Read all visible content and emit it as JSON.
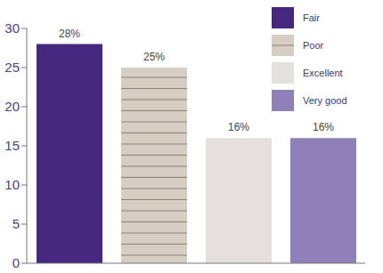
{
  "chart_data": {
    "type": "bar",
    "categories": [
      "Fair",
      "Poor",
      "Excellent",
      "Very good"
    ],
    "values": [
      28,
      25,
      16,
      16
    ],
    "value_labels": [
      "28%",
      "25%",
      "16%",
      "16%"
    ],
    "colors": [
      "#46287f",
      "#d6cdc3",
      "#e4e0db",
      "#8f80b9"
    ],
    "ylim": [
      0,
      30
    ],
    "yticks": [
      0,
      5,
      10,
      15,
      20,
      25,
      30
    ],
    "data_labels": true,
    "legend": "top-right",
    "tick_labels": "y"
  }
}
